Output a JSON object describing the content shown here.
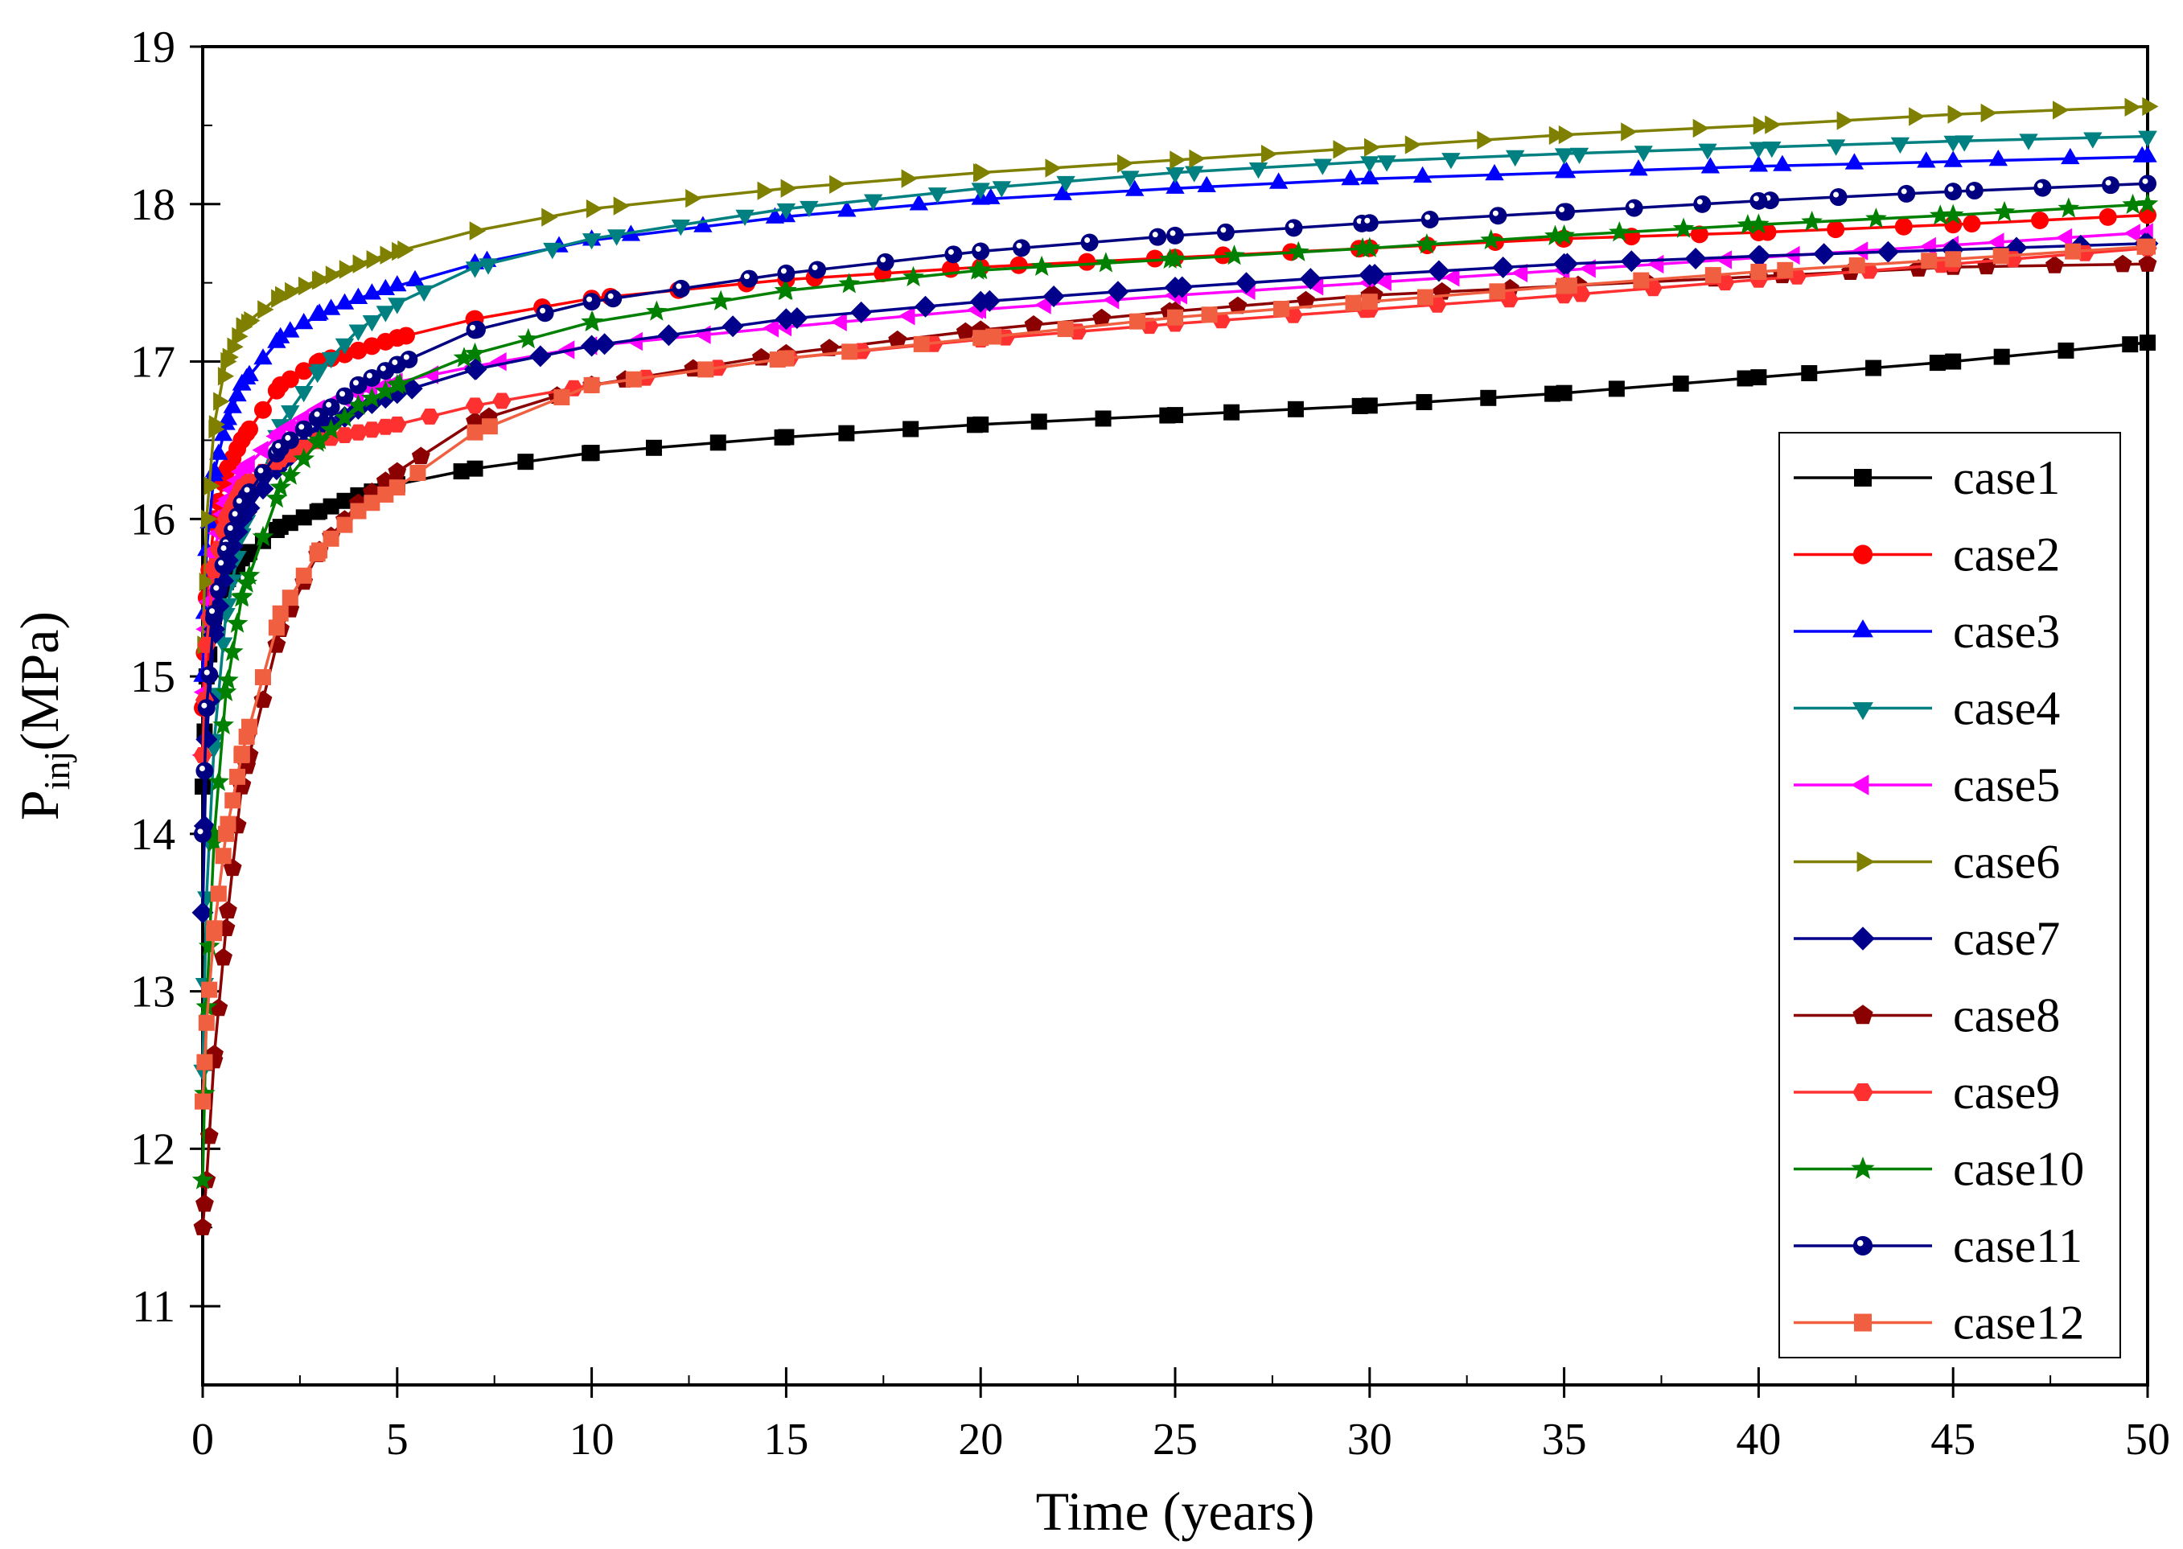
{
  "chart_data": {
    "type": "line",
    "title": "",
    "xlabel": "Time (years)",
    "ylabel": {
      "main": "P",
      "subscript": "inj",
      "unit": "(MPa)"
    },
    "xlim": [
      0,
      50
    ],
    "ylim": [
      10.5,
      19
    ],
    "xticks": [
      0,
      5,
      10,
      15,
      20,
      25,
      30,
      35,
      40,
      45,
      50
    ],
    "yticks": [
      11,
      12,
      13,
      14,
      15,
      16,
      17,
      18,
      19
    ],
    "grid": false,
    "legend": "bottom-right",
    "series": [
      {
        "name": "case1",
        "color": "#000000",
        "marker": "square",
        "points": [
          [
            0,
            14.3
          ],
          [
            0.1,
            15.0
          ],
          [
            0.3,
            15.4
          ],
          [
            0.6,
            15.6
          ],
          [
            1,
            15.75
          ],
          [
            2,
            15.95
          ],
          [
            3,
            16.05
          ],
          [
            4,
            16.15
          ],
          [
            5,
            16.22
          ],
          [
            7,
            16.32
          ],
          [
            10,
            16.42
          ],
          [
            15,
            16.52
          ],
          [
            20,
            16.6
          ],
          [
            25,
            16.66
          ],
          [
            30,
            16.72
          ],
          [
            35,
            16.8
          ],
          [
            40,
            16.9
          ],
          [
            45,
            17.0
          ],
          [
            50,
            17.12
          ]
        ]
      },
      {
        "name": "case2",
        "color": "#FF0000",
        "marker": "circle",
        "points": [
          [
            0,
            14.8
          ],
          [
            0.1,
            15.5
          ],
          [
            0.3,
            16.0
          ],
          [
            0.6,
            16.3
          ],
          [
            1,
            16.5
          ],
          [
            2,
            16.85
          ],
          [
            3,
            17.0
          ],
          [
            4,
            17.07
          ],
          [
            5,
            17.15
          ],
          [
            7,
            17.27
          ],
          [
            10,
            17.4
          ],
          [
            15,
            17.52
          ],
          [
            20,
            17.6
          ],
          [
            25,
            17.66
          ],
          [
            30,
            17.72
          ],
          [
            35,
            17.78
          ],
          [
            40,
            17.82
          ],
          [
            45,
            17.87
          ],
          [
            50,
            17.93
          ]
        ]
      },
      {
        "name": "case3",
        "color": "#0000FF",
        "marker": "triangle-up",
        "points": [
          [
            0,
            15.0
          ],
          [
            0.1,
            15.8
          ],
          [
            0.3,
            16.3
          ],
          [
            0.6,
            16.6
          ],
          [
            1,
            16.85
          ],
          [
            2,
            17.15
          ],
          [
            3,
            17.3
          ],
          [
            4,
            17.4
          ],
          [
            5,
            17.48
          ],
          [
            7,
            17.62
          ],
          [
            10,
            17.77
          ],
          [
            15,
            17.92
          ],
          [
            20,
            18.03
          ],
          [
            25,
            18.1
          ],
          [
            30,
            18.16
          ],
          [
            35,
            18.2
          ],
          [
            40,
            18.24
          ],
          [
            45,
            18.27
          ],
          [
            50,
            18.3
          ]
        ]
      },
      {
        "name": "case4",
        "color": "#008080",
        "marker": "triangle-down",
        "points": [
          [
            0,
            12.5
          ],
          [
            0.1,
            13.6
          ],
          [
            0.3,
            14.6
          ],
          [
            0.6,
            15.4
          ],
          [
            1,
            15.9
          ],
          [
            2,
            16.6
          ],
          [
            3,
            16.95
          ],
          [
            4,
            17.2
          ],
          [
            5,
            17.37
          ],
          [
            7,
            17.6
          ],
          [
            10,
            17.78
          ],
          [
            15,
            17.97
          ],
          [
            20,
            18.1
          ],
          [
            25,
            18.2
          ],
          [
            30,
            18.27
          ],
          [
            35,
            18.32
          ],
          [
            40,
            18.36
          ],
          [
            45,
            18.4
          ],
          [
            50,
            18.43
          ]
        ]
      },
      {
        "name": "case5",
        "color": "#FF00FF",
        "marker": "triangle-left",
        "points": [
          [
            0,
            14.5
          ],
          [
            0.1,
            15.3
          ],
          [
            0.3,
            15.8
          ],
          [
            0.6,
            16.1
          ],
          [
            1,
            16.3
          ],
          [
            2,
            16.55
          ],
          [
            3,
            16.7
          ],
          [
            4,
            16.8
          ],
          [
            5,
            16.87
          ],
          [
            7,
            16.97
          ],
          [
            10,
            17.1
          ],
          [
            15,
            17.22
          ],
          [
            20,
            17.33
          ],
          [
            25,
            17.42
          ],
          [
            30,
            17.5
          ],
          [
            35,
            17.58
          ],
          [
            40,
            17.66
          ],
          [
            45,
            17.74
          ],
          [
            50,
            17.82
          ]
        ]
      },
      {
        "name": "case6",
        "color": "#808000",
        "marker": "triangle-right",
        "points": [
          [
            0,
            15.2
          ],
          [
            0.1,
            16.0
          ],
          [
            0.3,
            16.6
          ],
          [
            0.6,
            17.0
          ],
          [
            1,
            17.22
          ],
          [
            2,
            17.42
          ],
          [
            3,
            17.52
          ],
          [
            4,
            17.62
          ],
          [
            5,
            17.7
          ],
          [
            7,
            17.83
          ],
          [
            10,
            17.97
          ],
          [
            15,
            18.1
          ],
          [
            20,
            18.2
          ],
          [
            25,
            18.28
          ],
          [
            30,
            18.36
          ],
          [
            35,
            18.44
          ],
          [
            40,
            18.5
          ],
          [
            45,
            18.57
          ],
          [
            50,
            18.62
          ]
        ]
      },
      {
        "name": "case7",
        "color": "#00008B",
        "marker": "diamond",
        "points": [
          [
            0,
            13.5
          ],
          [
            0.1,
            14.6
          ],
          [
            0.3,
            15.3
          ],
          [
            0.6,
            15.7
          ],
          [
            1,
            16.0
          ],
          [
            2,
            16.35
          ],
          [
            3,
            16.55
          ],
          [
            4,
            16.7
          ],
          [
            5,
            16.8
          ],
          [
            7,
            16.95
          ],
          [
            10,
            17.1
          ],
          [
            15,
            17.27
          ],
          [
            20,
            17.38
          ],
          [
            25,
            17.47
          ],
          [
            30,
            17.55
          ],
          [
            35,
            17.62
          ],
          [
            40,
            17.67
          ],
          [
            45,
            17.71
          ],
          [
            50,
            17.75
          ]
        ]
      },
      {
        "name": "case8",
        "color": "#8B0000",
        "marker": "pentagon",
        "points": [
          [
            0,
            11.5
          ],
          [
            0.1,
            11.8
          ],
          [
            0.3,
            12.6
          ],
          [
            0.6,
            13.4
          ],
          [
            1,
            14.3
          ],
          [
            2,
            15.3
          ],
          [
            3,
            15.8
          ],
          [
            4,
            16.1
          ],
          [
            5,
            16.3
          ],
          [
            7,
            16.62
          ],
          [
            10,
            16.85
          ],
          [
            15,
            17.05
          ],
          [
            20,
            17.2
          ],
          [
            25,
            17.32
          ],
          [
            30,
            17.42
          ],
          [
            35,
            17.48
          ],
          [
            40,
            17.54
          ],
          [
            45,
            17.6
          ],
          [
            50,
            17.62
          ]
        ]
      },
      {
        "name": "case9",
        "color": "#FF3030",
        "marker": "hexagon",
        "points": [
          [
            0,
            14.5
          ],
          [
            0.1,
            15.2
          ],
          [
            0.3,
            15.7
          ],
          [
            0.6,
            16.0
          ],
          [
            1,
            16.2
          ],
          [
            2,
            16.38
          ],
          [
            3,
            16.5
          ],
          [
            4,
            16.55
          ],
          [
            5,
            16.6
          ],
          [
            7,
            16.72
          ],
          [
            10,
            16.85
          ],
          [
            15,
            17.02
          ],
          [
            20,
            17.14
          ],
          [
            25,
            17.24
          ],
          [
            30,
            17.33
          ],
          [
            35,
            17.42
          ],
          [
            40,
            17.52
          ],
          [
            45,
            17.62
          ],
          [
            50,
            17.72
          ]
        ]
      },
      {
        "name": "case10",
        "color": "#008000",
        "marker": "star",
        "points": [
          [
            0,
            11.8
          ],
          [
            0.1,
            12.9
          ],
          [
            0.3,
            14.0
          ],
          [
            0.6,
            14.9
          ],
          [
            1,
            15.5
          ],
          [
            2,
            16.2
          ],
          [
            3,
            16.5
          ],
          [
            4,
            16.72
          ],
          [
            5,
            16.85
          ],
          [
            7,
            17.05
          ],
          [
            10,
            17.25
          ],
          [
            15,
            17.45
          ],
          [
            20,
            17.58
          ],
          [
            25,
            17.65
          ],
          [
            30,
            17.72
          ],
          [
            35,
            17.8
          ],
          [
            40,
            17.87
          ],
          [
            45,
            17.93
          ],
          [
            50,
            18.0
          ]
        ]
      },
      {
        "name": "case11",
        "color": "#000080",
        "marker": "circle-half",
        "points": [
          [
            0,
            14.0
          ],
          [
            0.1,
            14.8
          ],
          [
            0.3,
            15.4
          ],
          [
            0.6,
            15.8
          ],
          [
            1,
            16.1
          ],
          [
            2,
            16.45
          ],
          [
            3,
            16.65
          ],
          [
            4,
            16.85
          ],
          [
            5,
            16.98
          ],
          [
            7,
            17.2
          ],
          [
            10,
            17.38
          ],
          [
            15,
            17.56
          ],
          [
            20,
            17.7
          ],
          [
            25,
            17.8
          ],
          [
            30,
            17.88
          ],
          [
            35,
            17.95
          ],
          [
            40,
            18.02
          ],
          [
            45,
            18.08
          ],
          [
            50,
            18.13
          ]
        ]
      },
      {
        "name": "case12",
        "color": "#F06040",
        "marker": "square",
        "points": [
          [
            0,
            12.3
          ],
          [
            0.1,
            12.8
          ],
          [
            0.3,
            13.4
          ],
          [
            0.6,
            14.0
          ],
          [
            1,
            14.5
          ],
          [
            2,
            15.4
          ],
          [
            3,
            15.8
          ],
          [
            4,
            16.05
          ],
          [
            5,
            16.2
          ],
          [
            7,
            16.55
          ],
          [
            10,
            16.85
          ],
          [
            15,
            17.02
          ],
          [
            20,
            17.15
          ],
          [
            25,
            17.28
          ],
          [
            30,
            17.38
          ],
          [
            35,
            17.48
          ],
          [
            40,
            17.57
          ],
          [
            45,
            17.65
          ],
          [
            50,
            17.73
          ]
        ]
      }
    ]
  }
}
